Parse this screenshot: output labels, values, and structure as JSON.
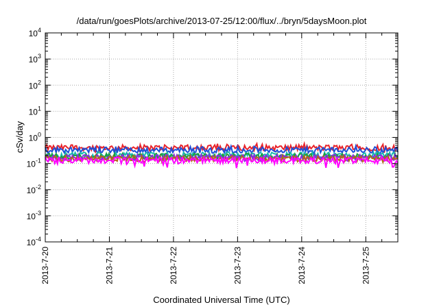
{
  "chart_data": {
    "type": "line",
    "title": "/data/run/goesPlots/archive/2013-07-25/12:00/flux/../bryn/5daysMoon.plot",
    "xlabel": "Coordinated Universal Time (UTC)",
    "ylabel": "cSv/day",
    "yscale": "log",
    "ylim": [
      0.0001,
      10000
    ],
    "xlim": [
      "2013-07-20 00:00",
      "2013-07-25 12:00"
    ],
    "grid": true,
    "x_tick_labels": [
      "2013-7-20",
      "2013-7-21",
      "2013-7-22",
      "2013-7-23",
      "2013-7-24",
      "2013-7-25"
    ],
    "y_ticks": [
      {
        "base": "10",
        "exp": "-4",
        "value": 0.0001
      },
      {
        "base": "10",
        "exp": "-3",
        "value": 0.001
      },
      {
        "base": "10",
        "exp": "-2",
        "value": 0.01
      },
      {
        "base": "10",
        "exp": "-1",
        "value": 0.1
      },
      {
        "base": "10",
        "exp": "0",
        "value": 1
      },
      {
        "base": "10",
        "exp": "1",
        "value": 10
      },
      {
        "base": "10",
        "exp": "2",
        "value": 100
      },
      {
        "base": "10",
        "exp": "3",
        "value": 1000
      },
      {
        "base": "10",
        "exp": "4",
        "value": 10000
      }
    ],
    "series": [
      {
        "color": "#e8232a",
        "level": 0.4,
        "min": 0.25,
        "max": 0.58
      },
      {
        "color": "#1d4fd8",
        "level": 0.33,
        "min": 0.2,
        "max": 0.47
      },
      {
        "color": "#17b7b0",
        "level": 0.21,
        "min": 0.15,
        "max": 0.28
      },
      {
        "color": "#1d9e3a",
        "level": 0.19,
        "min": 0.14,
        "max": 0.24
      },
      {
        "color": "#8a2be2",
        "level": 0.17,
        "min": 0.12,
        "max": 0.22
      },
      {
        "color": "#b5651d",
        "level": 0.155,
        "min": 0.11,
        "max": 0.2
      },
      {
        "color": "#ff00ff",
        "level": 0.13,
        "min": 0.055,
        "max": 0.18
      }
    ]
  }
}
